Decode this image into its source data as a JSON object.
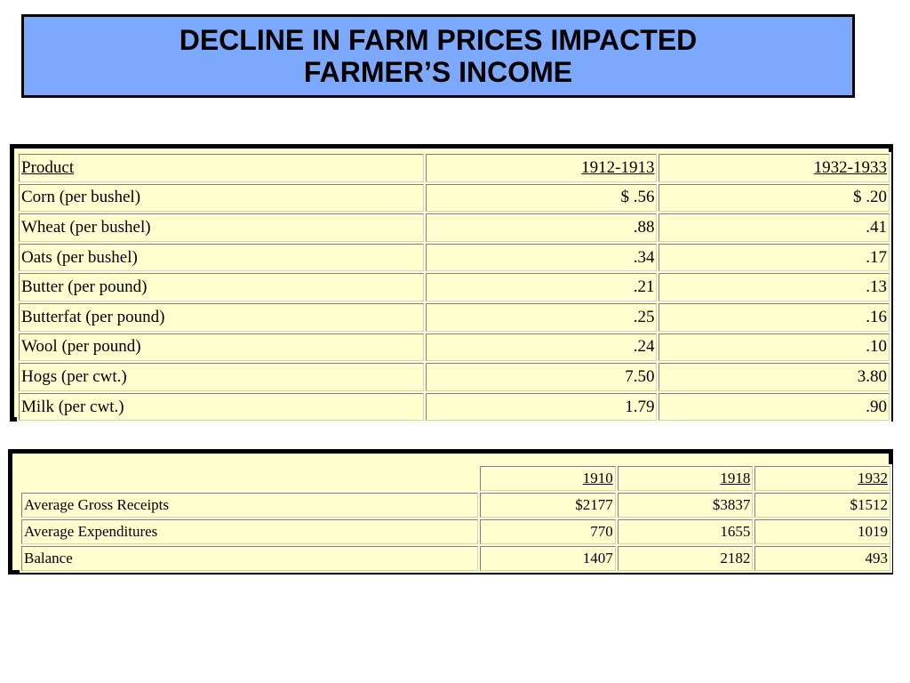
{
  "title": {
    "line1": "DECLINE IN FARM PRICES IMPACTED",
    "line2": "FARMER’S INCOME"
  },
  "prices_table": {
    "headers": [
      "Product",
      "1912-1913",
      "1932-1933"
    ],
    "rows": [
      [
        "Corn (per bushel)",
        "$ .56",
        "$ .20"
      ],
      [
        "Wheat (per bushel)",
        ".88",
        ".41"
      ],
      [
        "Oats (per bushel)",
        ".34",
        ".17"
      ],
      [
        "Butter (per pound)",
        ".21",
        ".13"
      ],
      [
        "Butterfat (per pound)",
        ".25",
        ".16"
      ],
      [
        "Wool (per pound)",
        ".24",
        ".10"
      ],
      [
        "Hogs (per cwt.)",
        "7.50",
        "3.80"
      ],
      [
        "Milk (per cwt.)",
        "1.79",
        ".90"
      ]
    ]
  },
  "income_table": {
    "headers": [
      "",
      "1910",
      "1918",
      "1932"
    ],
    "rows": [
      [
        "Average Gross Receipts",
        "$2177",
        "$3837",
        "$1512"
      ],
      [
        "Average Expenditures",
        "770",
        "1655",
        "1019"
      ],
      [
        "Balance",
        "1407",
        "2182",
        "493"
      ]
    ]
  },
  "colors": {
    "title_background": "#7da9fd",
    "table_background": "#fffecf",
    "border": "#000000"
  }
}
